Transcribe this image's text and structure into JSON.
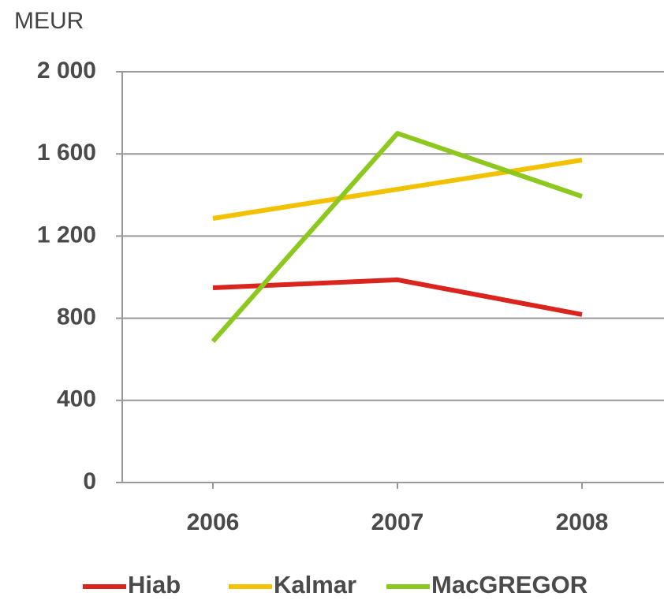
{
  "chart_data": {
    "type": "line",
    "y_label": "MEUR",
    "categories": [
      "2006",
      "2007",
      "2008"
    ],
    "series": [
      {
        "name": "Hiab",
        "color": "#d9251d",
        "values": [
          948,
          987,
          818
        ]
      },
      {
        "name": "Kalmar",
        "color": "#f2c200",
        "values": [
          1286,
          1428,
          1570
        ]
      },
      {
        "name": "MacGREGOR",
        "color": "#8cc81e",
        "values": [
          687,
          1700,
          1393
        ]
      }
    ],
    "ylim": [
      0,
      2000
    ],
    "yticks": [
      0,
      400,
      800,
      {
        "value": 1200,
        "label": "1 200"
      },
      {
        "value": 1600,
        "label": "1 600"
      },
      {
        "value": 2000,
        "label": "2 000"
      }
    ],
    "grid": true,
    "legend": "bottom"
  }
}
